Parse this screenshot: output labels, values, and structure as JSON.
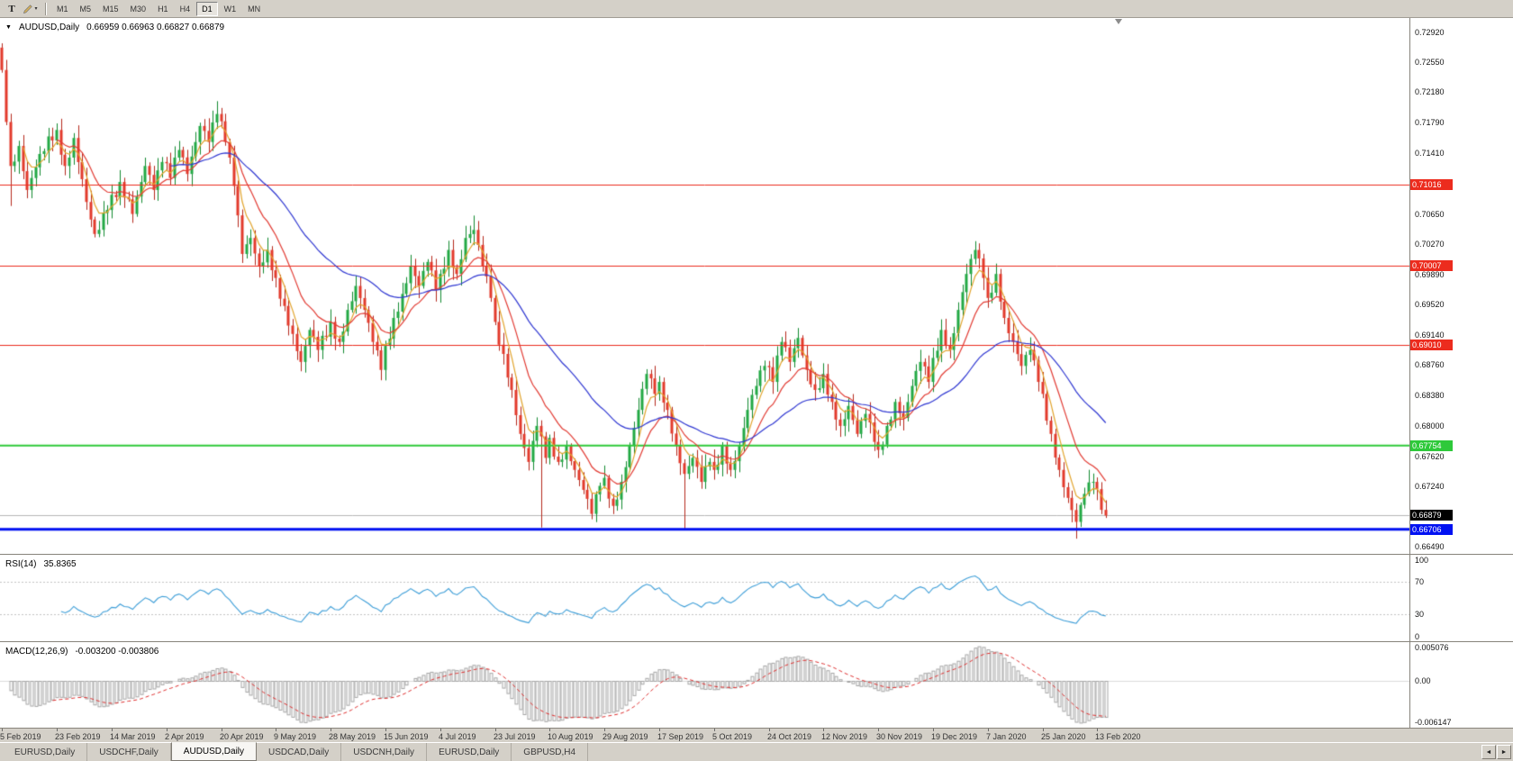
{
  "window": {
    "toolbar": {
      "text_tool_label": "T",
      "caret": "▾",
      "timeframes": [
        "M1",
        "M5",
        "M15",
        "M30",
        "H1",
        "H4",
        "D1",
        "W1",
        "MN"
      ],
      "active_timeframe": "D1"
    },
    "tabs": [
      "EURUSD,Daily",
      "USDCHF,Daily",
      "AUDUSD,Daily",
      "USDCAD,Daily",
      "USDCNH,Daily",
      "EURUSD,Daily",
      "GBPUSD,H4"
    ],
    "active_tab_index": 2,
    "tab_scroll_left": "◄",
    "tab_scroll_right": "►"
  },
  "main_chart": {
    "marker_glyph": "▼",
    "title": "AUDUSD,Daily",
    "ohlc_text": "0.66959 0.66963 0.66827 0.66879"
  },
  "rsi_panel": {
    "label": "RSI(14)",
    "value": "35.8365",
    "axis_labels": [
      "100",
      "70",
      "30",
      "0"
    ]
  },
  "macd_panel": {
    "label": "MACD(12,26,9)",
    "values": "-0.003200 -0.003806",
    "axis_top": "0.005076",
    "axis_mid": "0.00",
    "axis_bottom": "-0.006147"
  },
  "chart_data": {
    "type": "candlestick",
    "symbol": "AUDUSD",
    "timeframe": "Daily",
    "last_ohlc": {
      "open": 0.66959,
      "high": 0.66963,
      "low": 0.66827,
      "close": 0.66879
    },
    "candles_count": 263,
    "y_range": [
      0.664,
      0.731
    ],
    "candle_area_fraction": 0.786,
    "noise_amp": 0.00085,
    "y_ticks": [
      "0.72920",
      "0.72550",
      "0.72180",
      "0.71790",
      "0.71410",
      "0.71030",
      "0.70650",
      "0.70270",
      "0.69890",
      "0.69520",
      "0.69140",
      "0.68760",
      "0.68380",
      "0.68000",
      "0.67620",
      "0.67240",
      "0.66870",
      "0.66490"
    ],
    "levels": [
      {
        "price": 0.71016,
        "label": "0.71016",
        "color": "#ec2c1e",
        "line_width": 1
      },
      {
        "price": 0.70007,
        "label": "0.70007",
        "color": "#ec2c1e",
        "line_width": 1
      },
      {
        "price": 0.6901,
        "label": "0.69010",
        "color": "#ec2c1e",
        "line_width": 1
      },
      {
        "price": 0.67754,
        "label": "0.67754",
        "color": "#2ec93a",
        "line_width": 2
      },
      {
        "price": 0.66706,
        "label": "0.66706",
        "color": "#0011f2",
        "line_width": 3
      }
    ],
    "current_price": {
      "price": 0.66879,
      "label": "0.66879",
      "box_color": "#000000",
      "line_color": "#b6b6b6"
    },
    "colors": {
      "background": "#ffffff",
      "up": "#23a945",
      "up_border": "#128a30",
      "down": "#e33a2c",
      "down_border": "#b5281c"
    },
    "moving_averages": [
      {
        "name": "ma-fast",
        "method": "ema",
        "period": 5,
        "color": "#e2a42c"
      },
      {
        "name": "ma-medium",
        "method": "ema",
        "period": 13,
        "color": "#e23b33"
      },
      {
        "name": "ma-slow",
        "method": "ema",
        "period": 40,
        "color": "#3038d2"
      }
    ],
    "rsi": {
      "period": 14,
      "color": "#3d9ed8",
      "levels": [
        70,
        30
      ],
      "range": [
        0,
        100
      ],
      "level_color": "#c4c4c4"
    },
    "macd": {
      "fast": 12,
      "slow": 26,
      "signal_period": 9,
      "histogram_color": "#a6a6a6",
      "signal_color": "#e03030",
      "zero_color": "#dcdcdc"
    },
    "close_path_anchors": [
      [
        0,
        0.7245
      ],
      [
        1,
        0.718
      ],
      [
        2,
        0.7125
      ],
      [
        4,
        0.715
      ],
      [
        6,
        0.7095
      ],
      [
        9,
        0.714
      ],
      [
        13,
        0.717
      ],
      [
        15,
        0.7125
      ],
      [
        17,
        0.716
      ],
      [
        20,
        0.708
      ],
      [
        22,
        0.704
      ],
      [
        25,
        0.707
      ],
      [
        28,
        0.7105
      ],
      [
        31,
        0.7065
      ],
      [
        34,
        0.7125
      ],
      [
        36,
        0.7095
      ],
      [
        38,
        0.713
      ],
      [
        40,
        0.711
      ],
      [
        42,
        0.7145
      ],
      [
        44,
        0.7115
      ],
      [
        47,
        0.7175
      ],
      [
        49,
        0.7155
      ],
      [
        51,
        0.719
      ],
      [
        53,
        0.7155
      ],
      [
        55,
        0.71
      ],
      [
        57,
        0.7015
      ],
      [
        59,
        0.7035
      ],
      [
        61,
        0.7
      ],
      [
        63,
        0.702
      ],
      [
        65,
        0.6985
      ],
      [
        67,
        0.695
      ],
      [
        69,
        0.6915
      ],
      [
        71,
        0.688
      ],
      [
        73,
        0.692
      ],
      [
        75,
        0.6895
      ],
      [
        78,
        0.693
      ],
      [
        80,
        0.6905
      ],
      [
        82,
        0.6945
      ],
      [
        84,
        0.6975
      ],
      [
        86,
        0.6945
      ],
      [
        88,
        0.6905
      ],
      [
        90,
        0.687
      ],
      [
        91,
        0.69
      ],
      [
        93,
        0.6935
      ],
      [
        95,
        0.6965
      ],
      [
        97,
        0.7
      ],
      [
        99,
        0.6975
      ],
      [
        101,
        0.7005
      ],
      [
        103,
        0.697
      ],
      [
        104,
        0.699
      ],
      [
        106,
        0.702
      ],
      [
        108,
        0.699
      ],
      [
        110,
        0.7035
      ],
      [
        112,
        0.7045
      ],
      [
        114,
        0.7
      ],
      [
        116,
        0.696
      ],
      [
        117,
        0.693
      ],
      [
        119,
        0.689
      ],
      [
        121,
        0.6845
      ],
      [
        123,
        0.679
      ],
      [
        125,
        0.6755
      ],
      [
        127,
        0.68
      ],
      [
        129,
        0.676
      ],
      [
        130,
        0.6785
      ],
      [
        132,
        0.6755
      ],
      [
        134,
        0.6775
      ],
      [
        136,
        0.6745
      ],
      [
        138,
        0.672
      ],
      [
        140,
        0.669
      ],
      [
        142,
        0.6725
      ],
      [
        143,
        0.6735
      ],
      [
        145,
        0.67
      ],
      [
        147,
        0.673
      ],
      [
        149,
        0.6775
      ],
      [
        151,
        0.682
      ],
      [
        153,
        0.6865
      ],
      [
        155,
        0.684
      ],
      [
        156,
        0.6855
      ],
      [
        158,
        0.682
      ],
      [
        160,
        0.6775
      ],
      [
        162,
        0.674
      ],
      [
        164,
        0.676
      ],
      [
        166,
        0.673
      ],
      [
        168,
        0.6755
      ],
      [
        169,
        0.6745
      ],
      [
        171,
        0.6775
      ],
      [
        173,
        0.6745
      ],
      [
        175,
        0.6775
      ],
      [
        177,
        0.682
      ],
      [
        179,
        0.685
      ],
      [
        181,
        0.6875
      ],
      [
        183,
        0.6855
      ],
      [
        185,
        0.6905
      ],
      [
        187,
        0.688
      ],
      [
        189,
        0.691
      ],
      [
        191,
        0.687
      ],
      [
        193,
        0.6845
      ],
      [
        195,
        0.6865
      ],
      [
        197,
        0.683
      ],
      [
        199,
        0.68
      ],
      [
        201,
        0.6825
      ],
      [
        203,
        0.679
      ],
      [
        205,
        0.6815
      ],
      [
        207,
        0.678
      ],
      [
        208,
        0.677
      ],
      [
        210,
        0.68
      ],
      [
        212,
        0.683
      ],
      [
        214,
        0.681
      ],
      [
        216,
        0.685
      ],
      [
        218,
        0.688
      ],
      [
        220,
        0.6855
      ],
      [
        221,
        0.6885
      ],
      [
        223,
        0.692
      ],
      [
        225,
        0.6895
      ],
      [
        227,
        0.6945
      ],
      [
        229,
        0.699
      ],
      [
        231,
        0.702
      ],
      [
        233,
        0.6985
      ],
      [
        234,
        0.696
      ],
      [
        236,
        0.699
      ],
      [
        238,
        0.6935
      ],
      [
        240,
        0.6905
      ],
      [
        242,
        0.6875
      ],
      [
        244,
        0.6895
      ],
      [
        246,
        0.6855
      ],
      [
        247,
        0.684
      ],
      [
        249,
        0.679
      ],
      [
        251,
        0.6745
      ],
      [
        253,
        0.671
      ],
      [
        255,
        0.668
      ],
      [
        257,
        0.6715
      ],
      [
        259,
        0.673
      ],
      [
        261,
        0.6695
      ],
      [
        262,
        0.66879
      ]
    ],
    "special_wicks": [
      {
        "i": 0,
        "high": 0.7272
      },
      {
        "i": 2,
        "low": 0.7075
      },
      {
        "i": 51,
        "high": 0.7206
      },
      {
        "i": 112,
        "high": 0.7063
      },
      {
        "i": 128,
        "low": 0.6673
      },
      {
        "i": 162,
        "low": 0.6671
      },
      {
        "i": 231,
        "high": 0.7031
      },
      {
        "i": 255,
        "low": 0.6659
      }
    ],
    "x_labels": [
      {
        "index": 0,
        "label": "5 Feb 2019"
      },
      {
        "index": 13,
        "label": "23 Feb 2019"
      },
      {
        "index": 26,
        "label": "14 Mar 2019"
      },
      {
        "index": 39,
        "label": "2 Apr 2019"
      },
      {
        "index": 52,
        "label": "20 Apr 2019"
      },
      {
        "index": 65,
        "label": "9 May 2019"
      },
      {
        "index": 78,
        "label": "28 May 2019"
      },
      {
        "index": 91,
        "label": "15 Jun 2019"
      },
      {
        "index": 104,
        "label": "4 Jul 2019"
      },
      {
        "index": 117,
        "label": "23 Jul 2019"
      },
      {
        "index": 130,
        "label": "10 Aug 2019"
      },
      {
        "index": 143,
        "label": "29 Aug 2019"
      },
      {
        "index": 156,
        "label": "17 Sep 2019"
      },
      {
        "index": 169,
        "label": "5 Oct 2019"
      },
      {
        "index": 182,
        "label": "24 Oct 2019"
      },
      {
        "index": 195,
        "label": "12 Nov 2019"
      },
      {
        "index": 208,
        "label": "30 Nov 2019"
      },
      {
        "index": 221,
        "label": "19 Dec 2019"
      },
      {
        "index": 234,
        "label": "7 Jan 2020"
      },
      {
        "index": 247,
        "label": "25 Jan 2020"
      },
      {
        "index": 260,
        "label": "13 Feb 2020"
      }
    ]
  }
}
